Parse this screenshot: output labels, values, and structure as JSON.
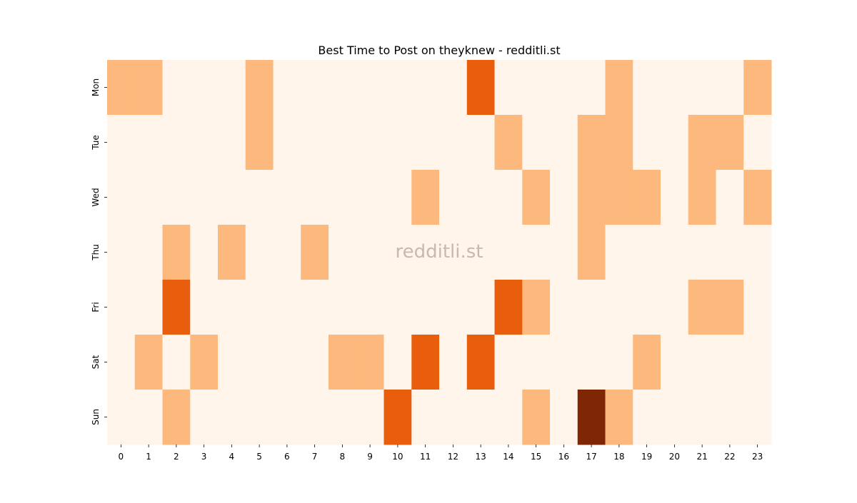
{
  "chart_data": {
    "type": "heatmap",
    "title": "Best Time to Post on theyknew - redditli.st",
    "watermark": "redditli.st",
    "x_ticks": [
      "0",
      "1",
      "2",
      "3",
      "4",
      "5",
      "6",
      "7",
      "8",
      "9",
      "10",
      "11",
      "12",
      "13",
      "14",
      "15",
      "16",
      "17",
      "18",
      "19",
      "20",
      "21",
      "22",
      "23"
    ],
    "y_ticks": [
      "Mon",
      "Tue",
      "Wed",
      "Thu",
      "Fri",
      "Sat",
      "Sun"
    ],
    "colormap": "Oranges",
    "level_colors": [
      "#fff5eb",
      "#fdb97d",
      "#e95e0d",
      "#7f2704"
    ],
    "values": [
      [
        1,
        1,
        0,
        0,
        0,
        1,
        0,
        0,
        0,
        0,
        0,
        0,
        0,
        2,
        0,
        0,
        0,
        0,
        1,
        0,
        0,
        0,
        0,
        1
      ],
      [
        0,
        0,
        0,
        0,
        0,
        1,
        0,
        0,
        0,
        0,
        0,
        0,
        0,
        0,
        1,
        0,
        0,
        1,
        1,
        0,
        0,
        1,
        1,
        0
      ],
      [
        0,
        0,
        0,
        0,
        0,
        0,
        0,
        0,
        0,
        0,
        0,
        1,
        0,
        0,
        0,
        1,
        0,
        1,
        1,
        1,
        0,
        1,
        0,
        1
      ],
      [
        0,
        0,
        1,
        0,
        1,
        0,
        0,
        1,
        0,
        0,
        0,
        0,
        0,
        0,
        0,
        0,
        0,
        1,
        0,
        0,
        0,
        0,
        0,
        0
      ],
      [
        0,
        0,
        2,
        0,
        0,
        0,
        0,
        0,
        0,
        0,
        0,
        0,
        0,
        0,
        2,
        1,
        0,
        0,
        0,
        0,
        0,
        1,
        1,
        0
      ],
      [
        0,
        1,
        0,
        1,
        0,
        0,
        0,
        0,
        1,
        1,
        0,
        2,
        0,
        2,
        0,
        0,
        0,
        0,
        0,
        1,
        0,
        0,
        0,
        0
      ],
      [
        0,
        0,
        1,
        0,
        0,
        0,
        0,
        0,
        0,
        0,
        2,
        0,
        0,
        0,
        0,
        1,
        0,
        3,
        1,
        0,
        0,
        0,
        0,
        0
      ]
    ]
  }
}
